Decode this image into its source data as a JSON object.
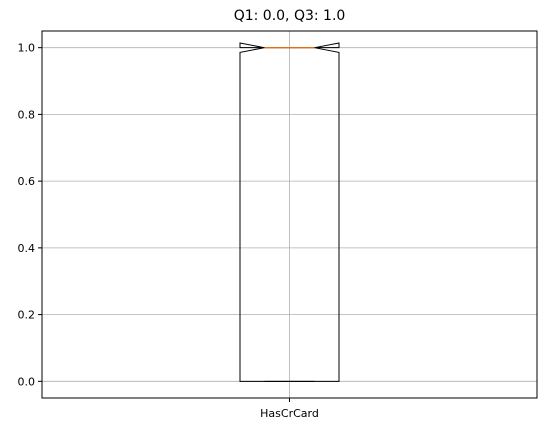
{
  "chart_data": {
    "type": "boxplot",
    "title": "Q1: 0.0, Q3: 1.0",
    "xlabel": "",
    "ylabel": "",
    "categories": [
      "HasCrCard"
    ],
    "boxes": [
      {
        "name": "HasCrCard",
        "q1": 0.0,
        "median": 1.0,
        "q3": 1.0,
        "whisker_low": 0.0,
        "whisker_high": 1.0,
        "notch_low": 0.986,
        "notch_high": 1.014,
        "notched": true
      }
    ],
    "ylim": [
      -0.05,
      1.05
    ],
    "yticks": [
      0.0,
      0.2,
      0.4,
      0.6,
      0.8,
      1.0
    ],
    "ytick_labels": [
      "0.0",
      "0.2",
      "0.4",
      "0.6",
      "0.8",
      "1.0"
    ],
    "grid": true,
    "colors": {
      "box": "#000000",
      "median": "#ff7f0e",
      "grid": "#b0b0b0",
      "axes": "#000000",
      "background": "#ffffff"
    }
  }
}
